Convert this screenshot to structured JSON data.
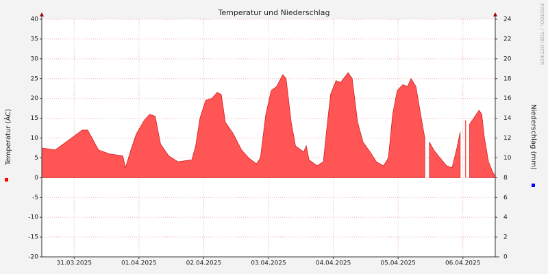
{
  "chart_data": {
    "type": "area",
    "title": "Temperatur und Niederschlag",
    "ylabel": "Temperatur (ÂC)",
    "y2label": "Niederschlag (mm)",
    "watermark": "RRDTOOL / TOBI OETIKER",
    "xlim": [
      0,
      168
    ],
    "xticks": [
      {
        "value": 12,
        "label": "31.03.2025"
      },
      {
        "value": 36,
        "label": "01.04.2025"
      },
      {
        "value": 60,
        "label": "02.04.2025"
      },
      {
        "value": 84,
        "label": "03.04.2025"
      },
      {
        "value": 108,
        "label": "04.04.2025"
      },
      {
        "value": 132,
        "label": "05.04.2025"
      },
      {
        "value": 156,
        "label": "06.04.2025"
      }
    ],
    "ylim": [
      -20,
      40
    ],
    "yticks": [
      -20,
      -15,
      -10,
      -5,
      0,
      5,
      10,
      15,
      20,
      25,
      30,
      35,
      40
    ],
    "y2lim": [
      0,
      24
    ],
    "y2ticks": [
      0,
      2,
      4,
      6,
      8,
      10,
      12,
      14,
      16,
      18,
      20,
      22,
      24
    ],
    "grid": true,
    "series": [
      {
        "color": "#ff5555",
        "x": [
          0,
          5,
          10,
          15,
          17,
          21,
          25,
          30,
          31,
          33,
          35,
          38,
          40,
          42,
          44,
          47,
          50.5,
          55.6,
          57,
          58.6,
          60.7,
          63,
          65,
          66.5,
          68,
          71,
          74,
          76.6,
          79.5,
          81,
          83,
          85,
          87,
          89.3,
          90.5,
          92.4,
          94,
          97,
          98,
          99,
          102,
          104.3,
          106,
          107,
          109,
          110.7,
          113.5,
          115,
          117,
          119,
          121.6,
          124,
          126.6,
          128.4,
          130,
          131.7,
          133.8,
          135.5,
          136.8,
          138.6,
          140.6,
          141.9,
          143,
          143.6,
          145.2,
          147.5,
          150,
          152,
          153.8,
          155,
          156,
          157,
          157.6,
          158.5,
          160,
          162,
          163,
          164,
          165.5,
          167,
          168
        ],
        "values": [
          7.5,
          7,
          9.5,
          12,
          12,
          7,
          6,
          5.5,
          2.5,
          7,
          11,
          14.5,
          16,
          15.5,
          8.5,
          5.5,
          4,
          4.5,
          8,
          15,
          19.5,
          20,
          21.5,
          21,
          14,
          11,
          7,
          5,
          3.5,
          5,
          16,
          22,
          23,
          26,
          25,
          14,
          8,
          6.5,
          8,
          4.5,
          3,
          4,
          15,
          21,
          24.5,
          24,
          26.5,
          25,
          14,
          9,
          6.5,
          4,
          3,
          5,
          16,
          22,
          23.5,
          23,
          25,
          23,
          15,
          10,
          null,
          9,
          7,
          5,
          3,
          2.5,
          7.5,
          11.5,
          null,
          14.5,
          null,
          13.5,
          15,
          17,
          16,
          10,
          4,
          1.5,
          0.3
        ]
      }
    ]
  }
}
